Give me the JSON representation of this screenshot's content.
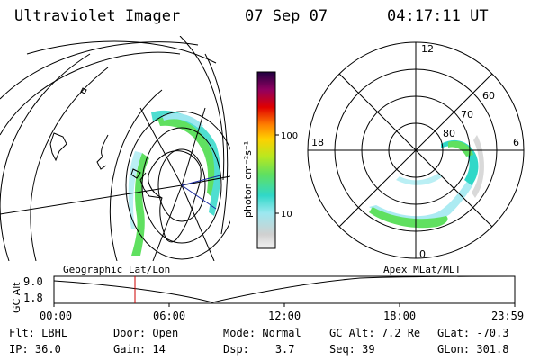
{
  "header": {
    "title": "Ultraviolet Imager",
    "date": "07 Sep 07",
    "time": "04:17:11 UT"
  },
  "colorbar": {
    "unit_label": "photon cm⁻²s⁻¹",
    "ticks": [
      "100",
      "10"
    ]
  },
  "polar_plot": {
    "mlt_labels": {
      "top": "12",
      "left": "18",
      "right": "6",
      "bottom": "0"
    },
    "lat_labels": [
      "60",
      "70",
      "80"
    ]
  },
  "map_labels": {
    "left": "Geographic Lat/Lon",
    "right": "Apex MLat/MLT"
  },
  "timeline": {
    "ylabel": "GC Alt",
    "ymax": "9.0",
    "ymin": "1.8",
    "xticks": [
      "00:00",
      "06:00",
      "12:00",
      "18:00",
      "23:59"
    ],
    "marker_time": "04:17"
  },
  "status": {
    "filter": {
      "label": "Flt:",
      "value": "LBHL"
    },
    "ip": {
      "label": "IP:",
      "value": "36.0"
    },
    "door": {
      "label": "Door:",
      "value": "Open"
    },
    "gain": {
      "label": "Gain:",
      "value": "14"
    },
    "mode": {
      "label": "Mode:",
      "value": "Normal"
    },
    "dsp": {
      "label": "Dsp:",
      "value": "3.7"
    },
    "gc_alt": {
      "label": "GC Alt:",
      "value": "7.2 Re"
    },
    "seq": {
      "label": "Seq:",
      "value": "39"
    },
    "glat": {
      "label": "GLat:",
      "value": "-70.3"
    },
    "glon": {
      "label": "GLon:",
      "value": "301.8"
    }
  },
  "colors": {
    "colorbar_stops": [
      "#f2f2f2",
      "#d0d0d0",
      "#9ce8f0",
      "#30d8c8",
      "#60e060",
      "#b8e820",
      "#ffd000",
      "#ff8000",
      "#e00000",
      "#900060",
      "#200040"
    ],
    "marker": "#cc0000"
  }
}
